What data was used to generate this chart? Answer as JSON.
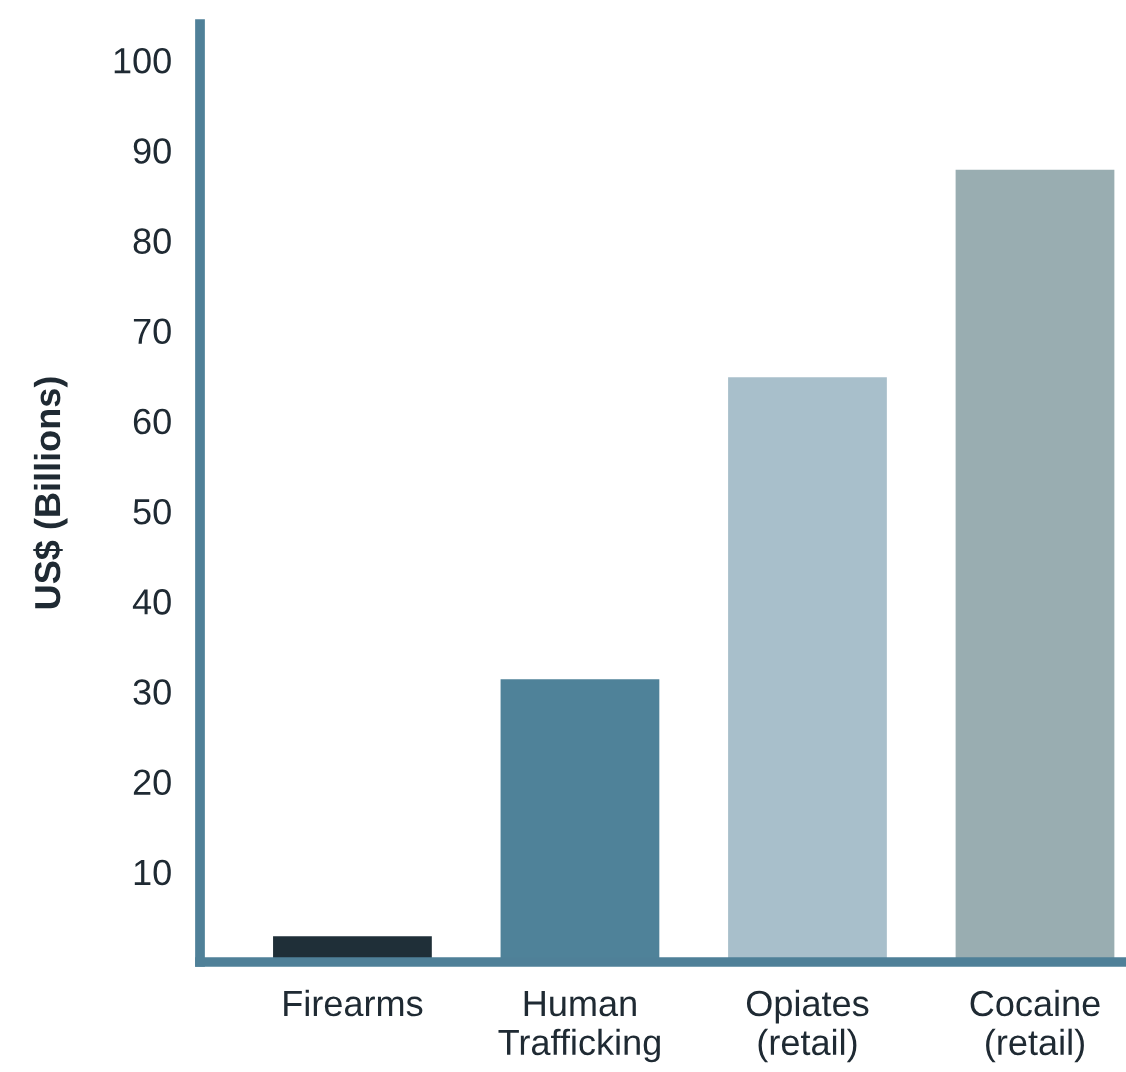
{
  "chart_data": {
    "type": "bar",
    "ylabel": "US$ (Billions)",
    "categories": [
      "Firearms",
      "Human\nTrafficking",
      "Opiates\n(retail)",
      "Cocaine\n(retail)"
    ],
    "values": [
      3,
      31.5,
      65,
      88
    ],
    "colors": [
      "#1f2f38",
      "#4f8299",
      "#a8bfcb",
      "#99adb1"
    ],
    "ylim": [
      0,
      104
    ],
    "yticks": [
      10,
      20,
      30,
      40,
      50,
      60,
      70,
      80,
      90,
      100
    ],
    "grid": false,
    "legend": false
  }
}
